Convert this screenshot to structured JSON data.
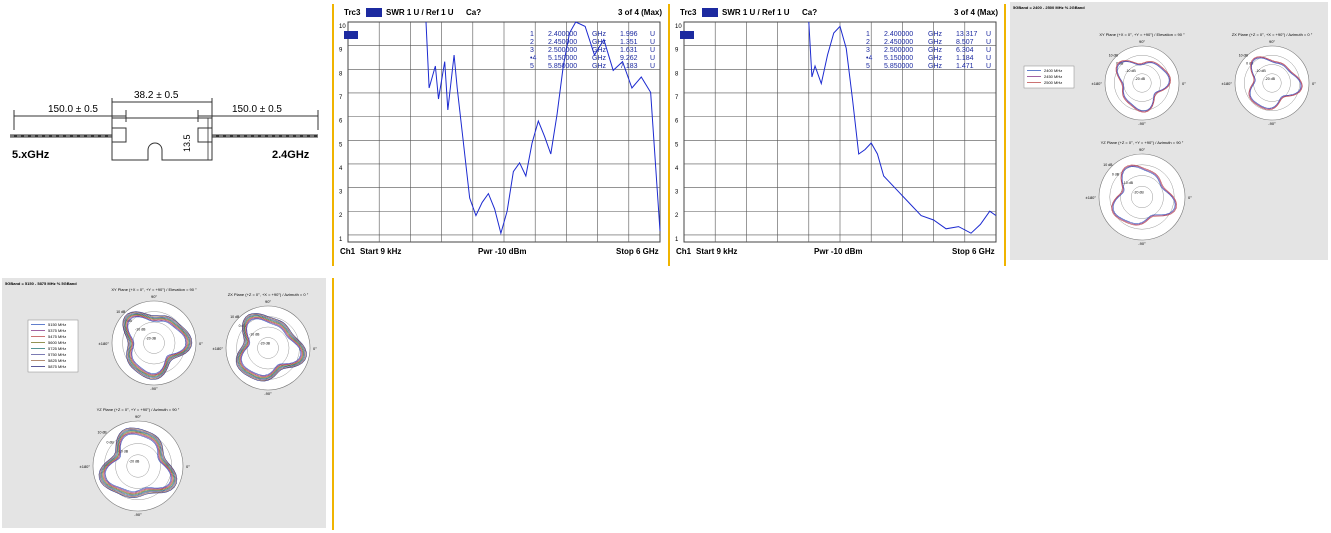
{
  "drawing": {
    "length_left": "150.0 ± 0.5",
    "length_mid": "38.2 ± 0.5",
    "length_right": "150.0 ± 0.5",
    "height": "13.5",
    "label_left": "5.xGHz",
    "label_right": "2.4GHz"
  },
  "vna1": {
    "trace": "Trc3",
    "param": "SWR  1 U /  Ref 1 U",
    "cal": "Ca?",
    "page": "3 of 4 (Max)",
    "y_ticks": [
      "10",
      "9",
      "8",
      "7",
      "6",
      "5",
      "4",
      "3",
      "2",
      "1"
    ],
    "markers": [
      {
        "num": "1",
        "freq": "2.400000",
        "unit": "GHz",
        "value": "1.996",
        "vunit": "U"
      },
      {
        "num": "2",
        "freq": "2.450000",
        "unit": "GHz",
        "value": "1.351",
        "vunit": "U"
      },
      {
        "num": "3",
        "freq": "2.500000",
        "unit": "GHz",
        "value": "1.631",
        "vunit": "U"
      },
      {
        "num": "•4",
        "freq": "5.150000",
        "unit": "GHz",
        "value": "9.262",
        "vunit": "U"
      },
      {
        "num": "5",
        "freq": "5.850000",
        "unit": "GHz",
        "value": "7.183",
        "vunit": "U"
      }
    ],
    "footer_ch": "Ch1",
    "footer_start": "Start  9 kHz",
    "footer_pwr": "Pwr  -10 dBm",
    "footer_stop": "Stop  6 GHz"
  },
  "vna2": {
    "trace": "Trc3",
    "param": "SWR  1 U /  Ref 1 U",
    "cal": "Ca?",
    "page": "3 of 4 (Max)",
    "y_ticks": [
      "10",
      "9",
      "8",
      "7",
      "6",
      "5",
      "4",
      "3",
      "2",
      "1"
    ],
    "markers": [
      {
        "num": "1",
        "freq": "2.400000",
        "unit": "GHz",
        "value": "13.317",
        "vunit": "U"
      },
      {
        "num": "2",
        "freq": "2.450000",
        "unit": "GHz",
        "value": "8.507",
        "vunit": "U"
      },
      {
        "num": "3",
        "freq": "2.500000",
        "unit": "GHz",
        "value": "6.304",
        "vunit": "U"
      },
      {
        "num": "•4",
        "freq": "5.150000",
        "unit": "GHz",
        "value": "1.184",
        "vunit": "U"
      },
      {
        "num": "5",
        "freq": "5.850000",
        "unit": "GHz",
        "value": "1.471",
        "vunit": "U"
      }
    ],
    "footer_ch": "Ch1",
    "footer_start": "Start  9 kHz",
    "footer_pwr": "Pwr  -10 dBm",
    "footer_stop": "Stop  6 GHz"
  },
  "polar24": {
    "header": "5GBand = 2400 - 2500 MHz % 2GBand",
    "legend": [
      "2400 MHz",
      "2450 MHz",
      "2500 MHz"
    ],
    "colors": [
      "#3b5fc0",
      "#8a3b8a",
      "#c05050"
    ],
    "xy_title": "XY Plane (+X = 0°, +Y = +90°) / Elevation = 90 °",
    "zx_title": "ZX Plane (+Z = 0°, +X = +90°) / Azimuth = 0 °",
    "yz_title": "YZ Plane (+Z = 0°, +Y = +90°) / Azimuth = 90 °",
    "top": "90°",
    "right": "0°",
    "left": "±180°",
    "bottom": "-90°",
    "r1": "10 dB",
    "r2": "0 dB",
    "r3": "-10 dB",
    "r4": "-20 dB"
  },
  "polar5": {
    "header": "5GBand = 5150 - 5875 MHz % 5GBand",
    "legend": [
      "5150 MHz",
      "5375 MHz",
      "5475 MHz",
      "5600 MHz",
      "5725 MHz",
      "5750 MHz",
      "5825 MHz",
      "5875 MHz"
    ],
    "colors": [
      "#3b5fc0",
      "#8a3b8a",
      "#c05050",
      "#7a7a2a",
      "#2a7a7a",
      "#5a5aa0",
      "#a07050",
      "#303080"
    ],
    "xy_title": "XY Plane (+X = 0°, +Y = +90°) / Elevation = 90 °",
    "zx_title": "ZX Plane (+Z = 0°, +X = +90°) / Azimuth = 0 °",
    "yz_title": "YZ Plane (+Z = 0°, +Y = +90°) / Azimuth = 90 °",
    "top": "90°",
    "right": "0°",
    "left": "±180°",
    "bottom": "-90°",
    "r1": "10 dB",
    "r2": "0 dB",
    "r3": "-10 dB",
    "r4": "-20 dB"
  }
}
